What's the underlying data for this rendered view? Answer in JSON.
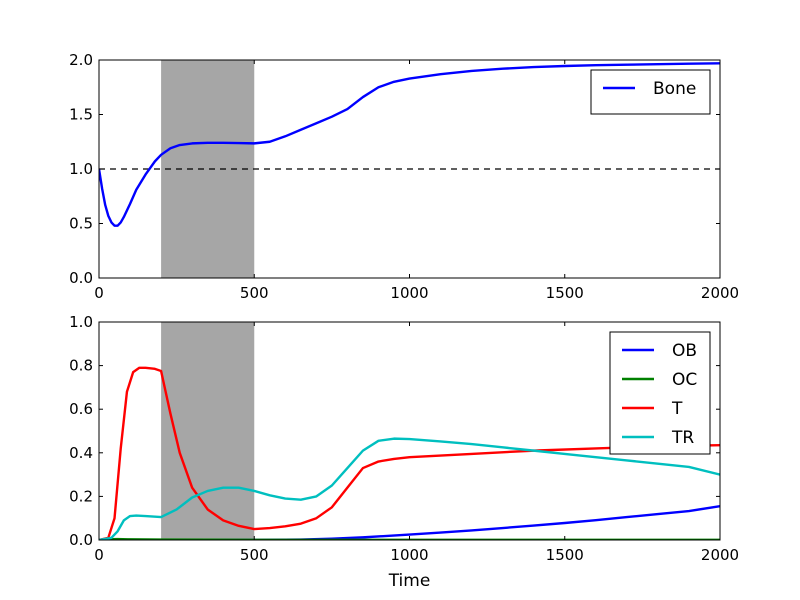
{
  "chart_data": [
    {
      "type": "line",
      "xlim": [
        0,
        2000
      ],
      "ylim": [
        0,
        2.0
      ],
      "xticks": [
        0,
        500,
        1000,
        1500,
        2000
      ],
      "xtick_labels": [
        "0",
        "500",
        "1000",
        "1500",
        "2000"
      ],
      "yticks": [
        0,
        0.5,
        1.0,
        1.5,
        2.0
      ],
      "ytick_labels": [
        "0.0",
        "0.5",
        "1.0",
        "1.5",
        "2.0"
      ],
      "xlabel": "",
      "ylabel": "",
      "grid": false,
      "legend_position": "upper-right",
      "shaded_region": [
        200,
        500
      ],
      "shaded_color": "#a6a6a6",
      "reference_line": {
        "y": 1.0,
        "style": "dashed",
        "color": "#000000"
      },
      "series": [
        {
          "name": "Bone",
          "color": "#0000ff",
          "x": [
            0,
            10,
            20,
            30,
            40,
            50,
            60,
            70,
            80,
            100,
            120,
            150,
            180,
            200,
            230,
            260,
            300,
            350,
            400,
            450,
            500,
            550,
            600,
            650,
            700,
            750,
            800,
            850,
            900,
            950,
            1000,
            1100,
            1200,
            1300,
            1400,
            1500,
            1600,
            1700,
            1800,
            1900,
            2000
          ],
          "y": [
            1.0,
            0.82,
            0.67,
            0.57,
            0.51,
            0.48,
            0.48,
            0.51,
            0.56,
            0.68,
            0.81,
            0.95,
            1.07,
            1.13,
            1.19,
            1.22,
            1.235,
            1.24,
            1.24,
            1.238,
            1.235,
            1.25,
            1.3,
            1.36,
            1.42,
            1.48,
            1.55,
            1.66,
            1.75,
            1.8,
            1.83,
            1.87,
            1.9,
            1.92,
            1.935,
            1.945,
            1.952,
            1.957,
            1.962,
            1.966,
            1.97
          ]
        }
      ]
    },
    {
      "type": "line",
      "xlim": [
        0,
        2000
      ],
      "ylim": [
        0,
        1.0
      ],
      "xticks": [
        0,
        500,
        1000,
        1500,
        2000
      ],
      "xtick_labels": [
        "0",
        "500",
        "1000",
        "1500",
        "2000"
      ],
      "yticks": [
        0,
        0.2,
        0.4,
        0.6,
        0.8,
        1.0
      ],
      "ytick_labels": [
        "0.0",
        "0.2",
        "0.4",
        "0.6",
        "0.8",
        "1.0"
      ],
      "xlabel": "Time",
      "ylabel": "",
      "grid": false,
      "legend_position": "upper-right",
      "shaded_region": [
        200,
        500
      ],
      "shaded_color": "#a6a6a6",
      "series": [
        {
          "name": "OB",
          "color": "#0000ff",
          "x": [
            0,
            200,
            500,
            650,
            750,
            850,
            1000,
            1100,
            1200,
            1300,
            1400,
            1500,
            1600,
            1700,
            1800,
            1900,
            2000
          ],
          "y": [
            0.0,
            0.0,
            0.0,
            0.002,
            0.006,
            0.012,
            0.025,
            0.034,
            0.044,
            0.055,
            0.066,
            0.078,
            0.091,
            0.105,
            0.119,
            0.133,
            0.155
          ]
        },
        {
          "name": "OC",
          "color": "#008000",
          "x": [
            0,
            20,
            60,
            100,
            200,
            500,
            1000,
            1500,
            2000
          ],
          "y": [
            0.0,
            0.003,
            0.004,
            0.003,
            0.002,
            0.001,
            0.001,
            0.001,
            0.001
          ]
        },
        {
          "name": "T",
          "color": "#ff0000",
          "x": [
            0,
            30,
            50,
            70,
            90,
            110,
            130,
            150,
            180,
            200,
            230,
            260,
            300,
            350,
            400,
            450,
            500,
            550,
            600,
            650,
            700,
            750,
            800,
            850,
            900,
            950,
            1000,
            1200,
            1400,
            1600,
            1800,
            2000
          ],
          "y": [
            0.0,
            0.01,
            0.1,
            0.42,
            0.68,
            0.77,
            0.79,
            0.79,
            0.785,
            0.775,
            0.58,
            0.4,
            0.24,
            0.14,
            0.09,
            0.065,
            0.05,
            0.055,
            0.063,
            0.075,
            0.1,
            0.15,
            0.24,
            0.33,
            0.36,
            0.372,
            0.38,
            0.395,
            0.41,
            0.42,
            0.43,
            0.435
          ]
        },
        {
          "name": "TR",
          "color": "#00bfbf",
          "x": [
            0,
            40,
            60,
            80,
            100,
            120,
            150,
            200,
            250,
            300,
            350,
            400,
            450,
            500,
            550,
            600,
            650,
            700,
            750,
            800,
            850,
            900,
            950,
            1000,
            1100,
            1200,
            1300,
            1400,
            1500,
            1600,
            1700,
            1800,
            1900,
            2000
          ],
          "y": [
            0.0,
            0.01,
            0.04,
            0.09,
            0.11,
            0.112,
            0.11,
            0.105,
            0.14,
            0.195,
            0.225,
            0.24,
            0.24,
            0.225,
            0.205,
            0.19,
            0.185,
            0.2,
            0.25,
            0.33,
            0.41,
            0.455,
            0.465,
            0.463,
            0.452,
            0.44,
            0.425,
            0.41,
            0.395,
            0.38,
            0.365,
            0.35,
            0.335,
            0.3
          ]
        }
      ]
    }
  ]
}
